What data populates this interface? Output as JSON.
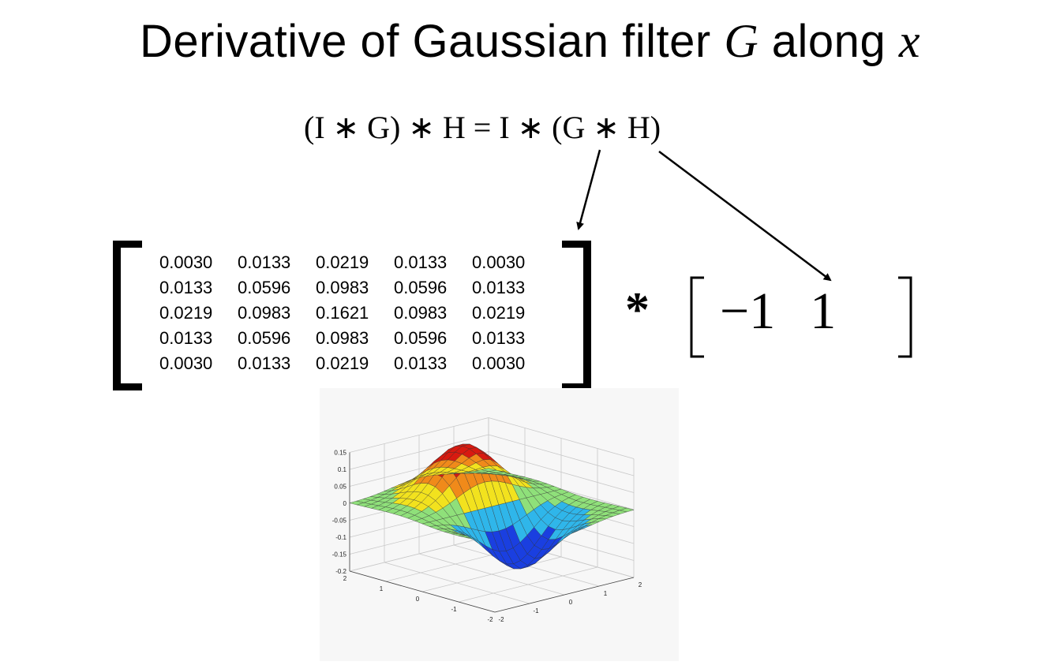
{
  "title": {
    "prefix": "Derivative of Gaussian filter ",
    "var1": "G",
    "middle": " along ",
    "var2": "x"
  },
  "equation": "(I ∗ G) ∗ H = I ∗ (G ∗ H)",
  "gaussian_matrix": [
    [
      "0.0030",
      "0.0133",
      "0.0219",
      "0.0133",
      "0.0030"
    ],
    [
      "0.0133",
      "0.0596",
      "0.0983",
      "0.0596",
      "0.0133"
    ],
    [
      "0.0219",
      "0.0983",
      "0.1621",
      "0.0983",
      "0.0219"
    ],
    [
      "0.0133",
      "0.0596",
      "0.0983",
      "0.0596",
      "0.0133"
    ],
    [
      "0.0030",
      "0.0133",
      "0.0219",
      "0.0133",
      "0.0030"
    ]
  ],
  "operator": "*",
  "kernel": [
    "−1",
    "1"
  ],
  "surface_plot": {
    "z_ticks": [
      "0.15",
      "0.1",
      "0.05",
      "0",
      "-0.05",
      "-0.1",
      "-0.15",
      "-0.2"
    ],
    "left_axis_ticks": [
      "2",
      "1",
      "0",
      "-1",
      "-2"
    ],
    "right_axis_ticks": [
      "-2",
      "-1",
      "0",
      "1",
      "2"
    ],
    "colors": {
      "red": "#d81a10",
      "orange": "#f08a1a",
      "yellow": "#f2e21e",
      "green": "#8fe07a",
      "cyan": "#2fb6ea",
      "blue": "#1a3fe0"
    }
  }
}
